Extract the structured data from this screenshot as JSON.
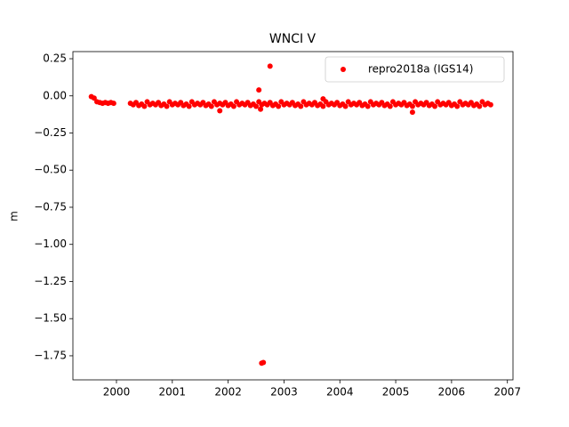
{
  "chart_data": {
    "type": "scatter",
    "title": "WNCI V",
    "ylabel": "m",
    "xlim": [
      1999.22,
      2007.1
    ],
    "ylim": [
      -1.912,
      0.298
    ],
    "xticks": [
      2000,
      2001,
      2002,
      2003,
      2004,
      2005,
      2006,
      2007
    ],
    "yticks": [
      0.25,
      {
        "value": 0,
        "label": "0.00"
      },
      {
        "value": -0.25,
        "label": "−0.25"
      },
      {
        "value": -0.5,
        "label": "−0.50"
      },
      {
        "value": -0.75,
        "label": "−0.75"
      },
      {
        "value": -1,
        "label": "−1.00"
      },
      {
        "value": -1.25,
        "label": "−1.25"
      },
      {
        "value": -1.5,
        "label": "−1.50"
      },
      {
        "value": -1.75,
        "label": "−1.75"
      }
    ],
    "legend": "upper right",
    "series": [
      {
        "name": "repro2018a (IGS14)",
        "color": "#ff0000",
        "x": [
          1999.55,
          1999.6,
          1999.65,
          1999.7,
          1999.75,
          1999.8,
          1999.85,
          1999.9,
          1999.95,
          2000.25,
          2000.3,
          2000.35,
          2000.4,
          2000.45,
          2000.5,
          2000.55,
          2000.6,
          2000.65,
          2000.7,
          2000.75,
          2000.8,
          2000.85,
          2000.9,
          2000.95,
          2001.0,
          2001.05,
          2001.1,
          2001.15,
          2001.2,
          2001.25,
          2001.3,
          2001.35,
          2001.4,
          2001.45,
          2001.5,
          2001.55,
          2001.6,
          2001.65,
          2001.7,
          2001.75,
          2001.8,
          2001.85,
          2001.9,
          2001.95,
          2002.0,
          2002.05,
          2002.1,
          2002.15,
          2002.2,
          2002.25,
          2002.3,
          2002.35,
          2002.4,
          2002.45,
          2002.5,
          2002.55,
          2002.6,
          2002.65,
          2002.7,
          2002.75,
          2002.8,
          2002.85,
          2002.9,
          2002.95,
          2003.0,
          2003.05,
          2003.1,
          2003.15,
          2003.2,
          2003.25,
          2003.3,
          2003.35,
          2003.4,
          2003.45,
          2003.5,
          2003.55,
          2003.6,
          2003.65,
          2003.7,
          2003.75,
          2003.8,
          2003.85,
          2003.9,
          2003.95,
          2004.0,
          2004.05,
          2004.1,
          2004.15,
          2004.2,
          2004.25,
          2004.3,
          2004.35,
          2004.4,
          2004.45,
          2004.5,
          2004.55,
          2004.6,
          2004.65,
          2004.7,
          2004.75,
          2004.8,
          2004.85,
          2004.9,
          2004.95,
          2005.0,
          2005.05,
          2005.1,
          2005.15,
          2005.2,
          2005.25,
          2005.3,
          2005.35,
          2005.4,
          2005.45,
          2005.5,
          2005.55,
          2005.6,
          2005.65,
          2005.7,
          2005.75,
          2005.8,
          2005.85,
          2005.9,
          2005.95,
          2006.0,
          2006.05,
          2006.1,
          2006.15,
          2006.2,
          2006.25,
          2006.3,
          2006.35,
          2006.4,
          2006.45,
          2006.5,
          2006.55,
          2006.6,
          2006.65,
          2006.7,
          2002.55,
          2002.75,
          2002.6,
          2002.63,
          2001.85,
          2005.3,
          2003.7,
          2002.58
        ],
        "values": [
          -0.005,
          -0.015,
          -0.04,
          -0.045,
          -0.05,
          -0.045,
          -0.05,
          -0.045,
          -0.05,
          -0.05,
          -0.06,
          -0.045,
          -0.065,
          -0.055,
          -0.07,
          -0.04,
          -0.06,
          -0.05,
          -0.06,
          -0.045,
          -0.065,
          -0.055,
          -0.07,
          -0.04,
          -0.06,
          -0.05,
          -0.06,
          -0.045,
          -0.065,
          -0.055,
          -0.07,
          -0.04,
          -0.06,
          -0.05,
          -0.06,
          -0.045,
          -0.065,
          -0.055,
          -0.07,
          -0.04,
          -0.06,
          -0.05,
          -0.06,
          -0.045,
          -0.065,
          -0.055,
          -0.07,
          -0.04,
          -0.06,
          -0.05,
          -0.06,
          -0.045,
          -0.065,
          -0.055,
          -0.07,
          -0.04,
          -0.06,
          -0.05,
          -0.06,
          -0.045,
          -0.065,
          -0.055,
          -0.07,
          -0.04,
          -0.06,
          -0.05,
          -0.06,
          -0.045,
          -0.065,
          -0.055,
          -0.07,
          -0.04,
          -0.06,
          -0.05,
          -0.06,
          -0.045,
          -0.065,
          -0.055,
          -0.07,
          -0.04,
          -0.06,
          -0.05,
          -0.06,
          -0.045,
          -0.065,
          -0.055,
          -0.07,
          -0.04,
          -0.06,
          -0.05,
          -0.06,
          -0.045,
          -0.065,
          -0.055,
          -0.07,
          -0.04,
          -0.06,
          -0.05,
          -0.06,
          -0.045,
          -0.065,
          -0.055,
          -0.07,
          -0.04,
          -0.06,
          -0.05,
          -0.06,
          -0.045,
          -0.065,
          -0.055,
          -0.07,
          -0.04,
          -0.06,
          -0.05,
          -0.06,
          -0.045,
          -0.065,
          -0.055,
          -0.07,
          -0.04,
          -0.06,
          -0.05,
          -0.06,
          -0.045,
          -0.065,
          -0.055,
          -0.07,
          -0.04,
          -0.06,
          -0.05,
          -0.06,
          -0.045,
          -0.065,
          -0.055,
          -0.07,
          -0.04,
          -0.06,
          -0.05,
          -0.06,
          0.04,
          0.2,
          -1.8,
          -1.795,
          -0.1,
          -0.11,
          -0.02,
          -0.09
        ]
      }
    ]
  }
}
